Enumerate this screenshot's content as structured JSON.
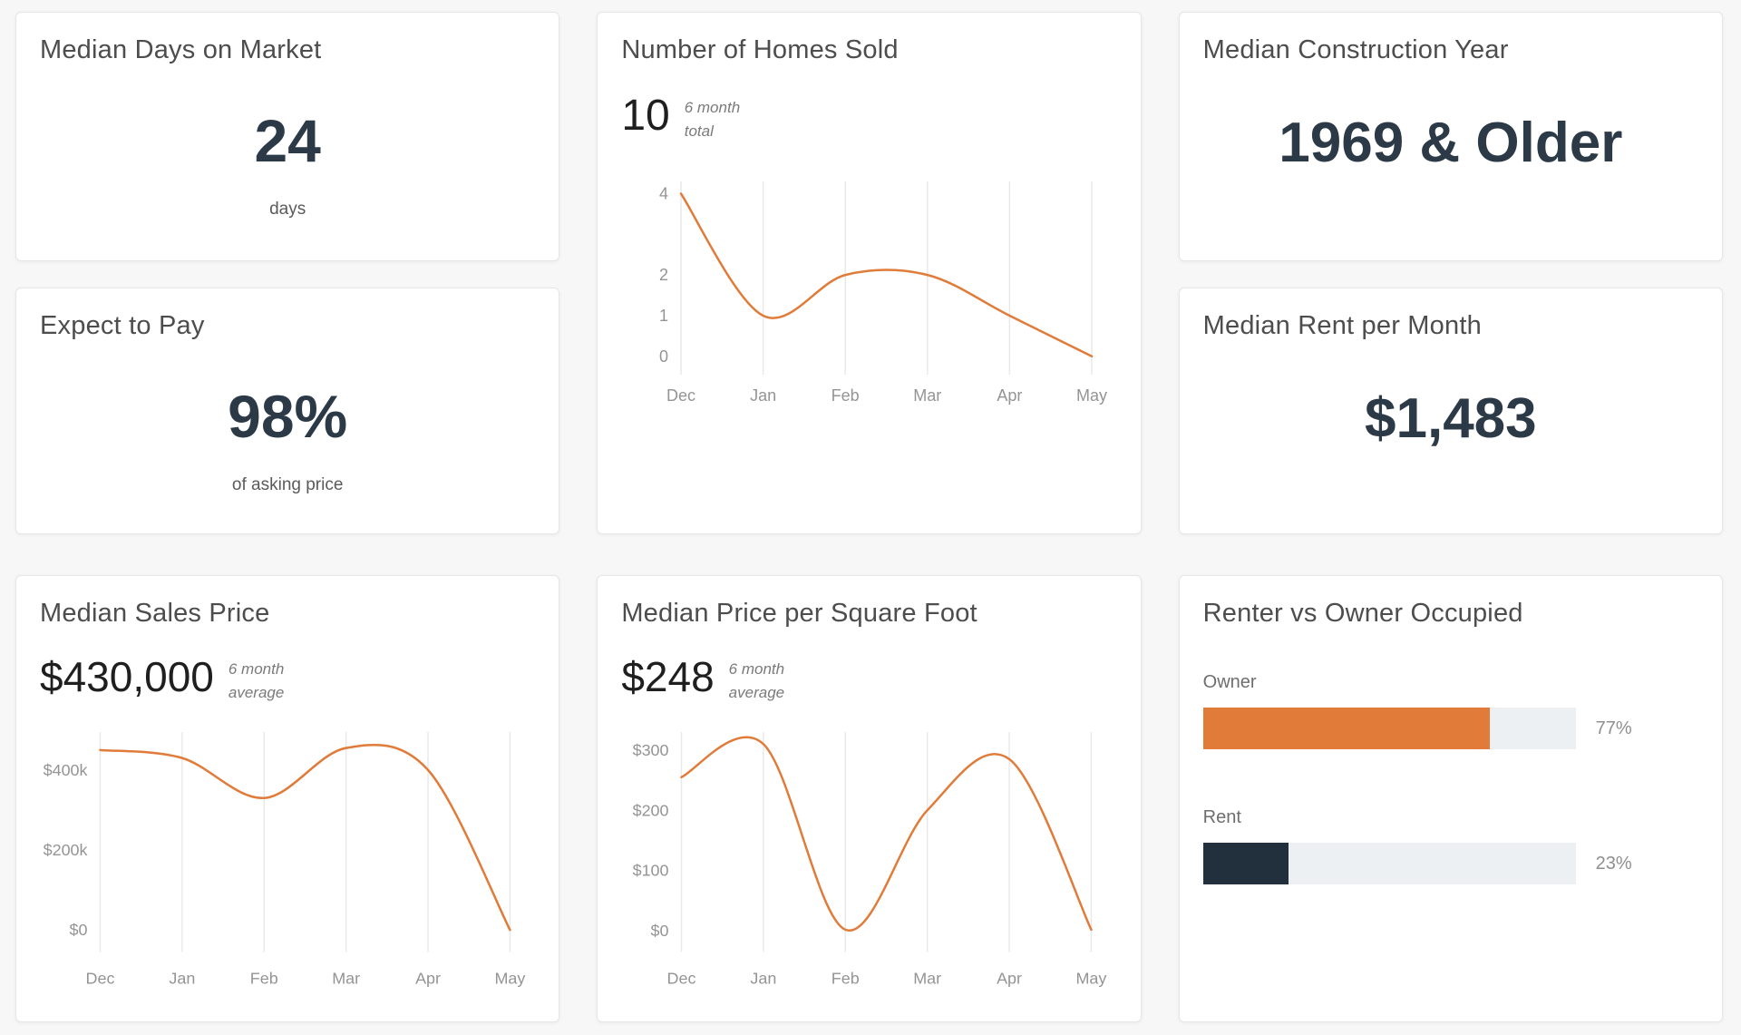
{
  "colors": {
    "accent_orange": "#e07b39",
    "dark_navy": "#22303e",
    "gridline": "#e9e9e9",
    "axis_label": "#949494",
    "stat_dark": "#2c3a47"
  },
  "cards": {
    "days_on_market": {
      "title": "Median Days on Market",
      "value": "24",
      "caption": "days"
    },
    "expect_to_pay": {
      "title": "Expect to Pay",
      "value": "98%",
      "caption": "of asking price"
    },
    "homes_sold": {
      "title": "Number of Homes Sold",
      "stat": "10",
      "note1": "6 month",
      "note2": "total"
    },
    "construction_year": {
      "title": "Median Construction Year",
      "value": "1969 & Older"
    },
    "rent_per_month": {
      "title": "Median Rent per Month",
      "value": "$1,483"
    },
    "sales_price": {
      "title": "Median Sales Price",
      "stat": "$430,000",
      "note1": "6 month",
      "note2": "average"
    },
    "price_per_sqft": {
      "title": "Median Price per Square Foot",
      "stat": "$248",
      "note1": "6 month",
      "note2": "average"
    },
    "renter_owner": {
      "title": "Renter vs Owner Occupied",
      "rows": [
        {
          "label": "Owner",
          "percent": 77,
          "percent_label": "77%",
          "color": "#e07b39"
        },
        {
          "label": "Rent",
          "percent": 23,
          "percent_label": "23%",
          "color": "#22303e"
        }
      ]
    }
  },
  "chart_data": [
    {
      "id": "homes-sold",
      "type": "line",
      "title": "Number of Homes Sold",
      "stat": "10",
      "stat_note": "6 month total",
      "categories": [
        "Dec",
        "Jan",
        "Feb",
        "Mar",
        "Apr",
        "May"
      ],
      "values": [
        4,
        1,
        2,
        2,
        1,
        0
      ],
      "yticks": [
        4,
        2,
        1,
        0
      ],
      "ytick_labels": [
        "4",
        "2",
        "1",
        "0"
      ],
      "ylim": [
        -0.45,
        4.3
      ],
      "line_color": "#e07b39",
      "grid": "vertical-only",
      "legend": "none",
      "xlabel": "",
      "ylabel": ""
    },
    {
      "id": "sales-price",
      "type": "line",
      "title": "Median Sales Price",
      "stat": "$430,000",
      "stat_note": "6 month average",
      "categories": [
        "Dec",
        "Jan",
        "Feb",
        "Mar",
        "Apr",
        "May"
      ],
      "values": [
        450000,
        430000,
        330000,
        455000,
        400000,
        0
      ],
      "yticks": [
        400000,
        200000,
        0
      ],
      "ytick_labels": [
        "$400k",
        "$200k",
        "$0"
      ],
      "ylim": [
        -55000,
        495000
      ],
      "line_color": "#e07b39",
      "grid": "vertical-only",
      "legend": "none",
      "xlabel": "",
      "ylabel": ""
    },
    {
      "id": "price-per-sqft",
      "type": "line",
      "title": "Median Price per Square Foot",
      "stat": "$248",
      "stat_note": "6 month average",
      "categories": [
        "Dec",
        "Jan",
        "Feb",
        "Mar",
        "Apr",
        "May"
      ],
      "values": [
        255,
        310,
        2,
        200,
        285,
        2
      ],
      "yticks": [
        300,
        200,
        100,
        0
      ],
      "ytick_labels": [
        "$300",
        "$200",
        "$100",
        "$0"
      ],
      "ylim": [
        -35,
        330
      ],
      "line_color": "#e07b39",
      "grid": "vertical-only",
      "legend": "none",
      "xlabel": "",
      "ylabel": ""
    }
  ]
}
